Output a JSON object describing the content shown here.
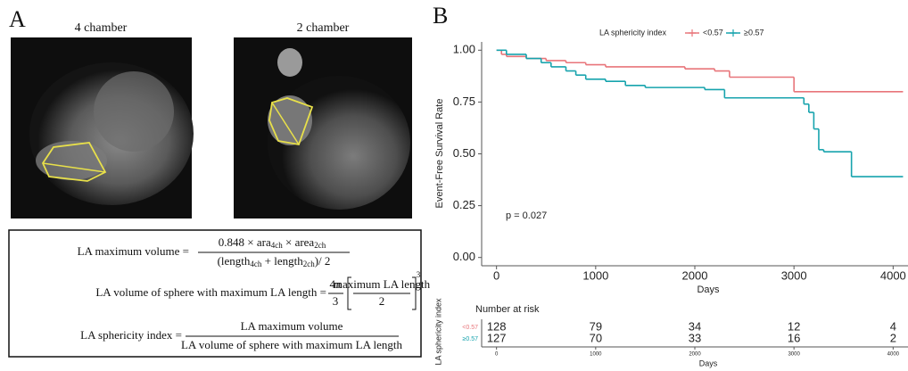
{
  "panel_a": {
    "label": "A",
    "images": [
      "4 chamber",
      "2 chamber"
    ],
    "formulas": [
      {
        "lhs": "LA maximum volume =",
        "numerator": [
          "0.848 × ara",
          "4ch",
          " × area",
          "2ch"
        ],
        "denominator": [
          "(length",
          "4ch",
          " + length",
          "2ch",
          ")/ 2"
        ]
      },
      {
        "lhs": "LA volume of sphere with maximum LA length =",
        "coefficient": {
          "numerator": "4π",
          "denominator": "3"
        },
        "numerator": [
          "maximum LA length"
        ],
        "denominator": [
          "2"
        ],
        "exponent": "3"
      },
      {
        "lhs": "LA sphericity index =",
        "numerator": [
          "LA maximum volume"
        ],
        "denominator": [
          "LA volume of sphere with maximum LA length"
        ]
      }
    ]
  },
  "chart_data": {
    "type": "step",
    "panel_label": "B",
    "legend_title": "LA sphericity index",
    "legend_position": "top",
    "x_label": "Days",
    "y_label": "Event-Free Survival Rate",
    "annotation": "p = 0.027",
    "xlim": [
      -150,
      4150
    ],
    "xticks": [
      0,
      1000,
      2000,
      3000,
      4000
    ],
    "ylim": [
      -0.04,
      1.04
    ],
    "yticks": [
      {
        "value": 0,
        "label": "0.00"
      },
      {
        "value": 0.25,
        "label": "0.25"
      },
      {
        "value": 0.5,
        "label": "0.50"
      },
      {
        "value": 0.75,
        "label": "0.75"
      },
      {
        "value": 1,
        "label": "1.00"
      }
    ],
    "series": [
      {
        "name": "<0.57",
        "color": "#e8757a",
        "x": [
          0,
          50,
          100,
          300,
          500,
          700,
          900,
          1100,
          1900,
          2200,
          2350,
          3000,
          4100
        ],
        "values": [
          1,
          0.98,
          0.97,
          0.96,
          0.95,
          0.94,
          0.93,
          0.92,
          0.91,
          0.9,
          0.87,
          0.8,
          0.8
        ]
      },
      {
        "name": "≥0.57",
        "color": "#16a3ad",
        "x": [
          0,
          100,
          300,
          450,
          550,
          700,
          800,
          900,
          1100,
          1300,
          1500,
          2100,
          2300,
          3100,
          3150,
          3200,
          3250,
          3300,
          3580,
          4100
        ],
        "values": [
          1,
          0.98,
          0.96,
          0.94,
          0.92,
          0.9,
          0.88,
          0.86,
          0.85,
          0.83,
          0.82,
          0.81,
          0.77,
          0.74,
          0.7,
          0.62,
          0.52,
          0.51,
          0.39,
          0.39
        ]
      }
    ],
    "risk_table": {
      "title": "Number at risk",
      "y_label": "LA sphericity index",
      "x_label": "Days",
      "rows": [
        [
          128,
          79,
          34,
          12,
          4
        ],
        [
          127,
          70,
          33,
          16,
          2
        ]
      ]
    }
  }
}
